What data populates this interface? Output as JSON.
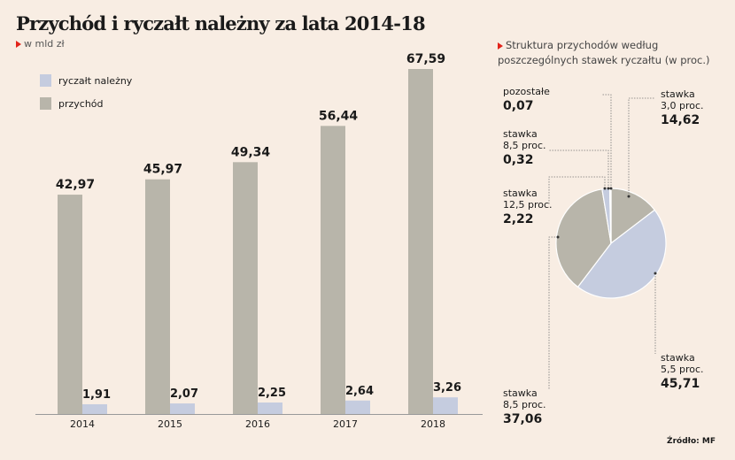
{
  "title": "Przychód i ryczałt należny za lata 2014-18",
  "unit": "w mld zł",
  "source": "Źródło: MF",
  "colors": {
    "przychod": "#b8b5aa",
    "ryczalt": "#c5ccdf",
    "pie_light": "#c5ccdf",
    "pie_gray": "#b8b5aa",
    "accent": "#e2231a",
    "background": "#f8ede3"
  },
  "pie_title": "Struktura przychodów według poszczególnych stawek ryczałtu (w proc.)",
  "chart_data": [
    {
      "type": "bar",
      "categories": [
        "2014",
        "2015",
        "2016",
        "2017",
        "2018"
      ],
      "series": [
        {
          "name": "przychód",
          "values": [
            42.97,
            45.97,
            49.34,
            56.44,
            67.59
          ],
          "labels": [
            "42,97",
            "45,97",
            "49,34",
            "56,44",
            "67,59"
          ]
        },
        {
          "name": "ryczałt należny",
          "values": [
            1.91,
            2.07,
            2.25,
            2.64,
            3.26
          ],
          "labels": [
            "1,91",
            "2,07",
            "2,25",
            "2,64",
            "3,26"
          ]
        }
      ],
      "legend": [
        "ryczałt należny",
        "przychód"
      ],
      "legend_position": "top-left",
      "ylim": [
        0,
        70
      ],
      "grid": false
    },
    {
      "type": "pie",
      "slices": [
        {
          "value": 14.62,
          "label": "14,62",
          "name_line1": "stawka",
          "name_line2": "3,0 proc.",
          "color": "pie_gray"
        },
        {
          "value": 45.71,
          "label": "45,71",
          "name_line1": "stawka",
          "name_line2": "5,5 proc.",
          "color": "pie_light"
        },
        {
          "value": 37.06,
          "label": "37,06",
          "name_line1": "stawka",
          "name_line2": "8,5 proc.",
          "color": "pie_gray"
        },
        {
          "value": 2.22,
          "label": "2,22",
          "name_line1": "stawka",
          "name_line2": "12,5 proc.",
          "color": "pie_light"
        },
        {
          "value": 0.32,
          "label": "0,32",
          "name_line1": "stawka",
          "name_line2": "8,5 proc.",
          "color": "pie_gray"
        },
        {
          "value": 0.07,
          "label": "0,07",
          "name_line1": "pozostałe",
          "name_line2": "",
          "color": "pie_gray"
        }
      ]
    }
  ]
}
